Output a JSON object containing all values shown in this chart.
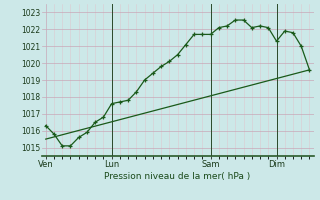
{
  "bg_color": "#cce8e8",
  "grid_color_major": "#c8a8b8",
  "grid_color_minor": "#ddc8d0",
  "line_color": "#1a5a1a",
  "title": "Pression niveau de la mer( hPa )",
  "ylabel_values": [
    1015,
    1016,
    1017,
    1018,
    1019,
    1020,
    1021,
    1022,
    1023
  ],
  "ylim": [
    1014.5,
    1023.5
  ],
  "day_labels": [
    "Ven",
    "Lun",
    "Sam",
    "Dim"
  ],
  "day_positions": [
    0,
    8,
    20,
    28
  ],
  "line1_x": [
    0,
    1,
    2,
    3,
    4,
    5,
    6,
    7,
    8,
    9,
    10,
    11,
    12,
    13,
    14,
    15,
    16,
    17,
    18,
    19,
    20,
    21,
    22,
    23,
    24,
    25,
    26,
    27,
    28,
    29,
    30,
    31,
    32
  ],
  "line1_y": [
    1016.3,
    1015.8,
    1015.1,
    1015.1,
    1015.6,
    1015.9,
    1016.5,
    1016.8,
    1017.6,
    1017.7,
    1017.8,
    1018.3,
    1019.0,
    1019.4,
    1019.8,
    1020.1,
    1020.5,
    1021.1,
    1021.7,
    1021.7,
    1021.7,
    1022.1,
    1022.2,
    1022.55,
    1022.55,
    1022.1,
    1022.2,
    1022.1,
    1021.3,
    1021.9,
    1021.8,
    1021.0,
    1019.6
  ],
  "line2_x": [
    0,
    32
  ],
  "line2_y": [
    1015.5,
    1019.6
  ],
  "vline_positions": [
    8,
    20,
    28
  ],
  "xlim": [
    -0.5,
    32.5
  ]
}
